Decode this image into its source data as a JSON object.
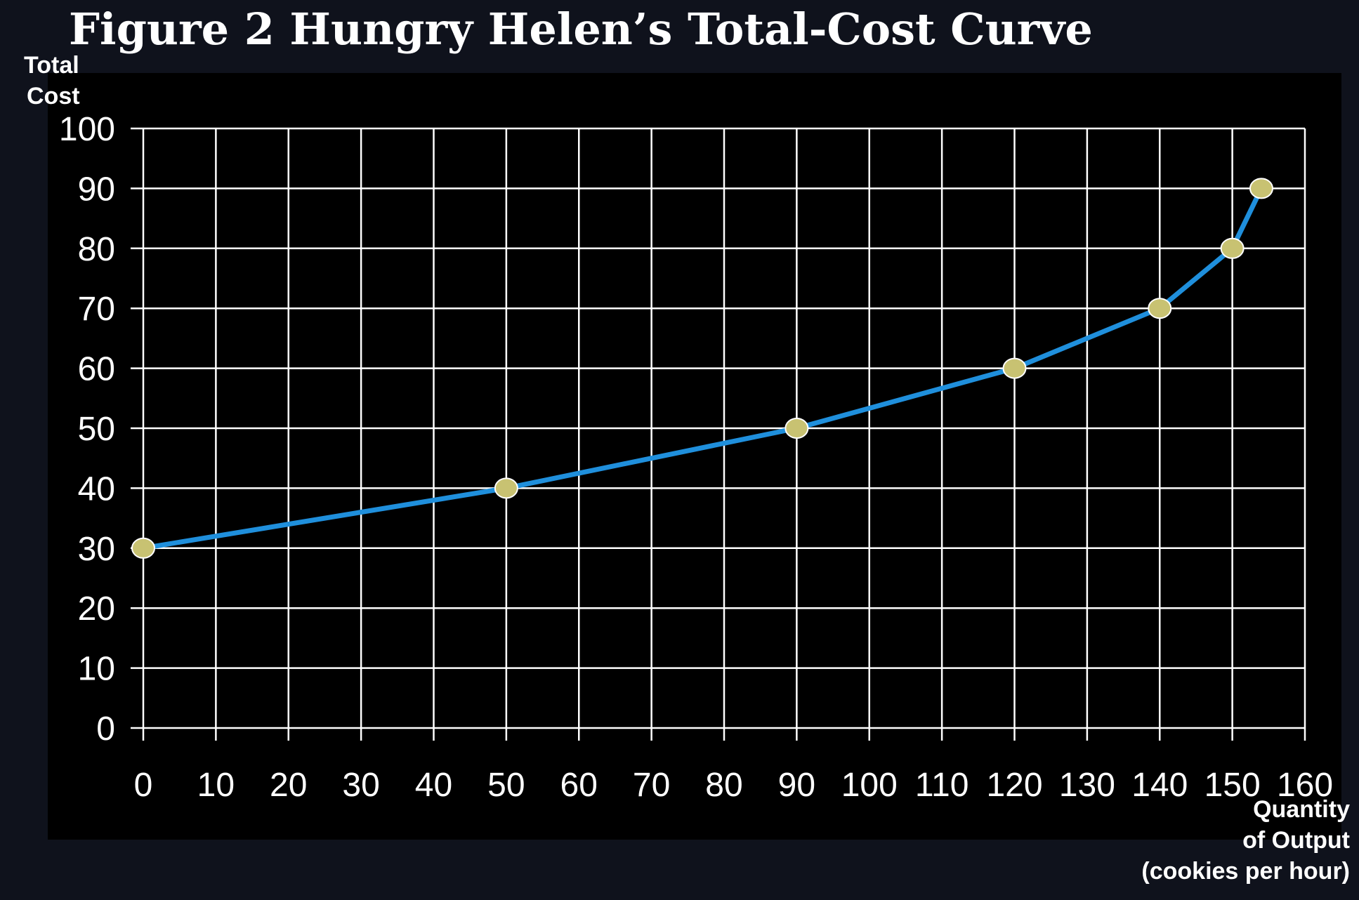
{
  "chart_data": {
    "type": "line",
    "title": "Figure 2 Hungry Helen’s Total-Cost Curve",
    "ylabel": [
      "Total",
      "Cost"
    ],
    "xlabel": [
      "Quantity",
      "of Output",
      "(cookies per hour)"
    ],
    "xlim": [
      0,
      160
    ],
    "ylim": [
      0,
      100
    ],
    "x_ticks": [
      0,
      10,
      20,
      30,
      40,
      50,
      60,
      70,
      80,
      90,
      100,
      110,
      120,
      130,
      140,
      150,
      160
    ],
    "y_ticks": [
      0,
      10,
      20,
      30,
      40,
      50,
      60,
      70,
      80,
      90,
      100
    ],
    "grid": true,
    "series": [
      {
        "x": [
          0,
          50,
          90,
          120,
          140,
          150,
          154
        ],
        "y": [
          30,
          40,
          50,
          60,
          70,
          80,
          90
        ]
      }
    ],
    "colors": {
      "page_background": "#0f121c",
      "plot_background": "#000000",
      "grid": "#ffffff",
      "line": "#1f8fdc",
      "marker_fill": "#c8c272",
      "marker_stroke": "#ffffff"
    }
  }
}
